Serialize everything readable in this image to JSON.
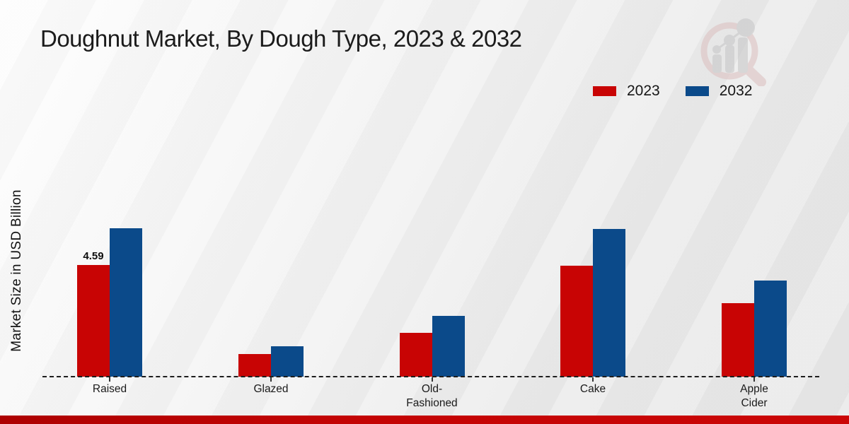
{
  "title": "Doughnut Market, By Dough Type, 2023 & 2032",
  "y_axis_label": "Market Size in USD Billion",
  "colors": {
    "series_2023": "#c80404",
    "series_2032": "#0b4a8a",
    "baseline": "#1d1d1d",
    "bottom_strip": "#c30404",
    "title_text": "#1b1b1b",
    "watermark_ring": "#ddc4c4",
    "watermark_bars": "#c9c9ca"
  },
  "watermark_icon": "magnifier-bar-chart-logo",
  "chart_data": {
    "type": "bar",
    "title": "Doughnut Market, By Dough Type, 2023 & 2032",
    "categories": [
      "Raised",
      "Glazed",
      "Old-Fashioned",
      "Cake",
      "Apple Cider"
    ],
    "category_display": [
      "Raised",
      "Glazed",
      "Old-\nFashioned",
      "Cake",
      "Apple\nCider"
    ],
    "series": [
      {
        "name": "2023",
        "color": "#c80404",
        "values": [
          4.59,
          0.92,
          1.81,
          4.55,
          3.0
        ]
      },
      {
        "name": "2032",
        "color": "#0b4a8a",
        "values": [
          6.07,
          1.24,
          2.48,
          6.04,
          3.95
        ]
      }
    ],
    "data_labels": [
      {
        "series": "2023",
        "category": "Raised",
        "text": "4.59"
      }
    ],
    "xlabel": "",
    "ylabel": "Market Size in USD Billion",
    "ylim": [
      0,
      6.5
    ],
    "grid": false,
    "y_axis_ticks_visible": false,
    "zero_line_style": "dashed",
    "legend_position": "top-right"
  }
}
